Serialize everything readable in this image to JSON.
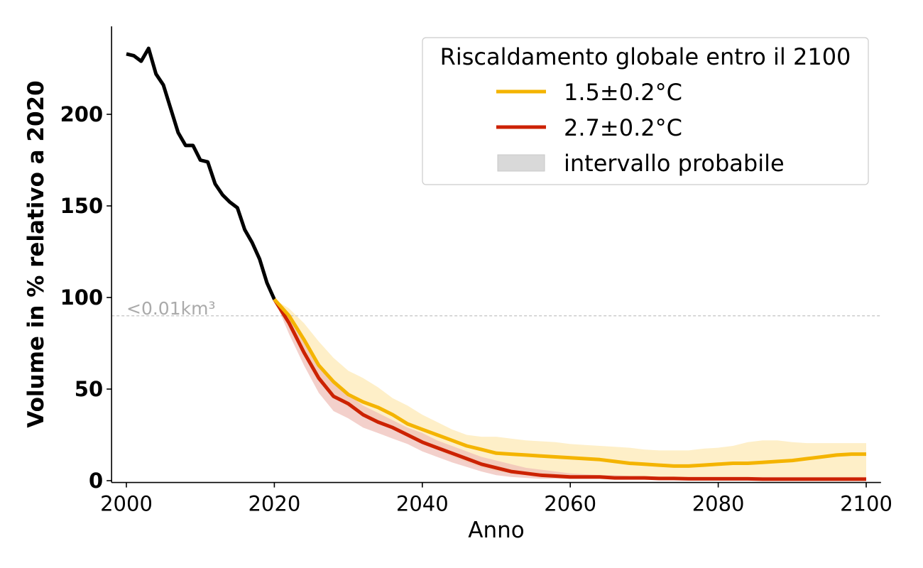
{
  "chart_data": {
    "type": "line",
    "title": "",
    "xlabel": "Anno",
    "ylabel": "Volume in % relativo a 2020",
    "xlim": [
      1998,
      2102
    ],
    "ylim": [
      -1,
      248
    ],
    "xticks": [
      2000,
      2020,
      2040,
      2060,
      2080,
      2100
    ],
    "yticks": [
      0,
      50,
      100,
      150,
      200
    ],
    "grid": false,
    "legend": {
      "placement": "top-right",
      "title": "Riscaldamento globale entro il 2100",
      "entries": [
        "1.5±0.2°C",
        "2.7±0.2°C",
        "intervallo probabile"
      ]
    },
    "reference_line": {
      "y": 90,
      "label": "<0.01km³",
      "color": "#bbbbbb"
    },
    "colors": {
      "historical": "#000000",
      "s15": "#f4b400",
      "s15_band": "#fde9b5",
      "s27": "#cc2200",
      "s27_band": "#eebcb5",
      "legend_band": "#d9d9d9"
    },
    "historical": {
      "x": [
        2000,
        2001,
        2002,
        2003,
        2004,
        2005,
        2006,
        2007,
        2008,
        2009,
        2010,
        2011,
        2012,
        2013,
        2014,
        2015,
        2016,
        2017,
        2018,
        2019,
        2020
      ],
      "y": [
        233,
        232,
        229,
        236,
        222,
        216,
        203,
        190,
        183,
        183,
        175,
        174,
        162,
        156,
        152,
        149,
        137,
        130,
        121,
        108,
        99
      ]
    },
    "series": [
      {
        "name": "1.5±0.2°C",
        "x": [
          2020,
          2022,
          2024,
          2026,
          2028,
          2030,
          2032,
          2034,
          2036,
          2038,
          2040,
          2042,
          2044,
          2046,
          2048,
          2050,
          2052,
          2054,
          2056,
          2058,
          2060,
          2062,
          2064,
          2066,
          2068,
          2070,
          2072,
          2074,
          2076,
          2078,
          2080,
          2082,
          2084,
          2086,
          2088,
          2090,
          2092,
          2094,
          2096,
          2098,
          2100
        ],
        "y": [
          99,
          90,
          77,
          63,
          54,
          47,
          43,
          40,
          36,
          31,
          28,
          25,
          22,
          19,
          17,
          15,
          14.5,
          14,
          13.5,
          13,
          12.5,
          12,
          11.5,
          10.5,
          9.5,
          9,
          8.5,
          8,
          8,
          8.5,
          9,
          9.5,
          9.5,
          10,
          10.5,
          11,
          12,
          13,
          14,
          14.5,
          14.5
        ],
        "band_low": [
          99,
          84,
          70,
          57,
          47,
          40,
          36,
          33,
          29,
          25,
          21,
          17,
          13,
          10,
          7,
          5,
          4,
          3,
          2.5,
          2,
          2,
          1.5,
          1.5,
          1.2,
          1.2,
          1,
          1,
          1,
          1,
          1,
          1,
          1,
          1,
          1,
          1,
          1,
          1,
          1,
          1,
          1,
          1
        ],
        "band_high": [
          99,
          94,
          86,
          76,
          67,
          60,
          56,
          51,
          45,
          41,
          36,
          32,
          28,
          25,
          24,
          24,
          23,
          22,
          21.5,
          21,
          20,
          19.5,
          19,
          18.5,
          18,
          17,
          16.5,
          16.5,
          16.5,
          17.5,
          18,
          19,
          21,
          22,
          22,
          21,
          20.5,
          20.5,
          20.5,
          20.5,
          20.5
        ]
      },
      {
        "name": "2.7±0.2°C",
        "x": [
          2020,
          2022,
          2024,
          2026,
          2028,
          2030,
          2032,
          2034,
          2036,
          2038,
          2040,
          2042,
          2044,
          2046,
          2048,
          2050,
          2052,
          2054,
          2056,
          2058,
          2060,
          2062,
          2064,
          2066,
          2068,
          2070,
          2072,
          2074,
          2076,
          2078,
          2080,
          2082,
          2084,
          2086,
          2088,
          2090,
          2092,
          2094,
          2096,
          2098,
          2100
        ],
        "y": [
          99,
          86,
          70,
          56,
          46,
          42,
          36,
          32,
          29,
          25,
          21,
          18,
          15,
          12,
          9,
          7,
          5,
          4,
          3,
          2.5,
          2,
          2,
          2,
          1.5,
          1.5,
          1.5,
          1.2,
          1.2,
          1,
          1,
          1,
          1,
          1,
          0.8,
          0.8,
          0.8,
          0.8,
          0.8,
          0.8,
          0.8,
          0.8
        ],
        "band_low": [
          99,
          80,
          63,
          48,
          38,
          34,
          29,
          26,
          23,
          20,
          16,
          13,
          10,
          7.5,
          5,
          3,
          2,
          1.5,
          1,
          1,
          0.8,
          0.8,
          0.8,
          0.6,
          0.6,
          0.6,
          0.5,
          0.5,
          0.5,
          0.5,
          0.5,
          0.5,
          0.5,
          0.5,
          0.5,
          0.5,
          0.5,
          0.5,
          0.5,
          0.5,
          0.5
        ],
        "band_high": [
          99,
          91,
          77,
          63,
          53,
          47,
          41,
          37,
          33,
          29,
          26,
          22,
          19,
          16,
          13,
          11,
          9,
          7,
          6,
          5,
          4,
          3.5,
          3,
          3,
          2.5,
          2.5,
          2,
          2,
          2,
          2,
          2,
          2,
          2,
          2,
          2,
          2,
          2,
          2,
          2,
          2,
          2
        ]
      }
    ]
  }
}
